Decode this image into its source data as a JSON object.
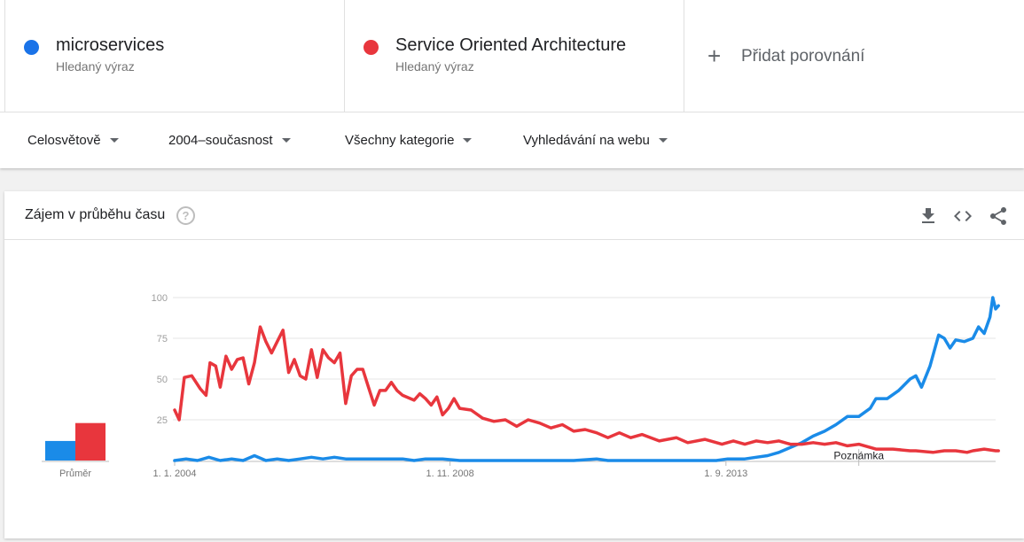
{
  "terms": [
    {
      "name": "microservices",
      "sublabel": "Hledaný výraz",
      "color": "#1a73e8"
    },
    {
      "name": "Service Oriented Architecture",
      "sublabel": "Hledaný výraz",
      "color": "#e8363d"
    }
  ],
  "add_comparison": {
    "label": "Přidat porovnání",
    "icon": "plus-icon"
  },
  "filters": [
    {
      "label": "Celosvětově",
      "icon": "caret-down-icon"
    },
    {
      "label": "2004–současnost",
      "icon": "caret-down-icon"
    },
    {
      "label": "Všechny kategorie",
      "icon": "caret-down-icon"
    },
    {
      "label": "Vyhledávání na webu",
      "icon": "caret-down-icon"
    }
  ],
  "card": {
    "title": "Zájem v průběhu času",
    "help_glyph": "?",
    "icons": [
      "download-icon",
      "embed-code-icon",
      "share-icon"
    ]
  },
  "chart_data": {
    "type": "line",
    "title": "",
    "xlabel": "",
    "ylabel": "",
    "ylim": [
      0,
      100
    ],
    "yticks": [
      25,
      50,
      75,
      100
    ],
    "x_ticks": [
      {
        "label": "1. 1. 2004",
        "t": 2004.0
      },
      {
        "label": "1. 11. 2008",
        "t": 2008.83
      },
      {
        "label": "1. 9. 2013",
        "t": 2013.67
      }
    ],
    "x_range": [
      2004.0,
      2018.4
    ],
    "grid": true,
    "annotation": {
      "label": "Poznámka",
      "t": 2016.0
    },
    "average": {
      "label": "Průměr",
      "values": [
        12,
        23
      ]
    },
    "series": [
      {
        "name": "microservices",
        "color": "#1a8be8",
        "points": [
          [
            2004.0,
            0
          ],
          [
            2004.2,
            1
          ],
          [
            2004.4,
            0
          ],
          [
            2004.6,
            2
          ],
          [
            2004.8,
            0
          ],
          [
            2005.0,
            1
          ],
          [
            2005.2,
            0
          ],
          [
            2005.4,
            3
          ],
          [
            2005.6,
            0
          ],
          [
            2005.8,
            1
          ],
          [
            2006.0,
            0
          ],
          [
            2006.2,
            1
          ],
          [
            2006.4,
            2
          ],
          [
            2006.6,
            1
          ],
          [
            2006.8,
            2
          ],
          [
            2007.0,
            1
          ],
          [
            2007.3,
            1
          ],
          [
            2007.6,
            1
          ],
          [
            2008.0,
            1
          ],
          [
            2008.2,
            0
          ],
          [
            2008.4,
            1
          ],
          [
            2008.7,
            1
          ],
          [
            2009.0,
            0
          ],
          [
            2009.5,
            0
          ],
          [
            2010.0,
            0
          ],
          [
            2010.5,
            0
          ],
          [
            2011.0,
            0
          ],
          [
            2011.4,
            1
          ],
          [
            2011.6,
            0
          ],
          [
            2012.0,
            0
          ],
          [
            2012.5,
            0
          ],
          [
            2013.0,
            0
          ],
          [
            2013.5,
            0
          ],
          [
            2013.7,
            1
          ],
          [
            2014.0,
            1
          ],
          [
            2014.2,
            2
          ],
          [
            2014.4,
            3
          ],
          [
            2014.6,
            5
          ],
          [
            2014.8,
            8
          ],
          [
            2015.0,
            11
          ],
          [
            2015.2,
            15
          ],
          [
            2015.4,
            18
          ],
          [
            2015.6,
            22
          ],
          [
            2015.8,
            27
          ],
          [
            2016.0,
            27
          ],
          [
            2016.2,
            32
          ],
          [
            2016.3,
            38
          ],
          [
            2016.5,
            38
          ],
          [
            2016.7,
            43
          ],
          [
            2016.9,
            50
          ],
          [
            2017.0,
            52
          ],
          [
            2017.1,
            45
          ],
          [
            2017.25,
            58
          ],
          [
            2017.4,
            77
          ],
          [
            2017.5,
            75
          ],
          [
            2017.6,
            69
          ],
          [
            2017.7,
            74
          ],
          [
            2017.85,
            73
          ],
          [
            2018.0,
            75
          ],
          [
            2018.1,
            82
          ],
          [
            2018.2,
            78
          ],
          [
            2018.3,
            88
          ],
          [
            2018.35,
            100
          ],
          [
            2018.4,
            93
          ],
          [
            2018.45,
            95
          ]
        ]
      },
      {
        "name": "Service Oriented Architecture",
        "color": "#e8363d",
        "points": [
          [
            2004.0,
            31
          ],
          [
            2004.08,
            25
          ],
          [
            2004.17,
            51
          ],
          [
            2004.3,
            52
          ],
          [
            2004.45,
            44
          ],
          [
            2004.55,
            40
          ],
          [
            2004.62,
            60
          ],
          [
            2004.72,
            58
          ],
          [
            2004.8,
            45
          ],
          [
            2004.9,
            64
          ],
          [
            2005.0,
            56
          ],
          [
            2005.1,
            62
          ],
          [
            2005.2,
            63
          ],
          [
            2005.3,
            47
          ],
          [
            2005.4,
            60
          ],
          [
            2005.5,
            82
          ],
          [
            2005.6,
            73
          ],
          [
            2005.7,
            66
          ],
          [
            2005.8,
            73
          ],
          [
            2005.9,
            80
          ],
          [
            2006.0,
            54
          ],
          [
            2006.1,
            62
          ],
          [
            2006.2,
            52
          ],
          [
            2006.3,
            50
          ],
          [
            2006.4,
            68
          ],
          [
            2006.5,
            51
          ],
          [
            2006.6,
            68
          ],
          [
            2006.7,
            63
          ],
          [
            2006.8,
            60
          ],
          [
            2006.9,
            66
          ],
          [
            2007.0,
            35
          ],
          [
            2007.1,
            52
          ],
          [
            2007.2,
            56
          ],
          [
            2007.3,
            56
          ],
          [
            2007.4,
            45
          ],
          [
            2007.5,
            34
          ],
          [
            2007.6,
            43
          ],
          [
            2007.7,
            43
          ],
          [
            2007.8,
            48
          ],
          [
            2007.9,
            43
          ],
          [
            2008.0,
            40
          ],
          [
            2008.2,
            37
          ],
          [
            2008.3,
            41
          ],
          [
            2008.4,
            38
          ],
          [
            2008.5,
            34
          ],
          [
            2008.6,
            39
          ],
          [
            2008.7,
            28
          ],
          [
            2008.8,
            32
          ],
          [
            2008.9,
            38
          ],
          [
            2009.0,
            32
          ],
          [
            2009.2,
            31
          ],
          [
            2009.4,
            26
          ],
          [
            2009.6,
            24
          ],
          [
            2009.8,
            25
          ],
          [
            2010.0,
            21
          ],
          [
            2010.2,
            25
          ],
          [
            2010.4,
            23
          ],
          [
            2010.6,
            20
          ],
          [
            2010.8,
            22
          ],
          [
            2011.0,
            18
          ],
          [
            2011.2,
            19
          ],
          [
            2011.4,
            17
          ],
          [
            2011.6,
            14
          ],
          [
            2011.8,
            17
          ],
          [
            2012.0,
            14
          ],
          [
            2012.2,
            16
          ],
          [
            2012.5,
            12
          ],
          [
            2012.8,
            14
          ],
          [
            2013.0,
            11
          ],
          [
            2013.3,
            13
          ],
          [
            2013.6,
            10
          ],
          [
            2013.8,
            12
          ],
          [
            2014.0,
            10
          ],
          [
            2014.2,
            12
          ],
          [
            2014.4,
            11
          ],
          [
            2014.6,
            12
          ],
          [
            2014.8,
            10
          ],
          [
            2015.0,
            10
          ],
          [
            2015.2,
            11
          ],
          [
            2015.4,
            10
          ],
          [
            2015.6,
            11
          ],
          [
            2015.8,
            9
          ],
          [
            2016.0,
            10
          ],
          [
            2016.3,
            7
          ],
          [
            2016.6,
            7
          ],
          [
            2016.9,
            6
          ],
          [
            2017.0,
            6
          ],
          [
            2017.3,
            5
          ],
          [
            2017.5,
            6
          ],
          [
            2017.7,
            6
          ],
          [
            2017.9,
            5
          ],
          [
            2018.0,
            6
          ],
          [
            2018.2,
            7
          ],
          [
            2018.4,
            6
          ],
          [
            2018.45,
            6
          ]
        ]
      }
    ]
  }
}
